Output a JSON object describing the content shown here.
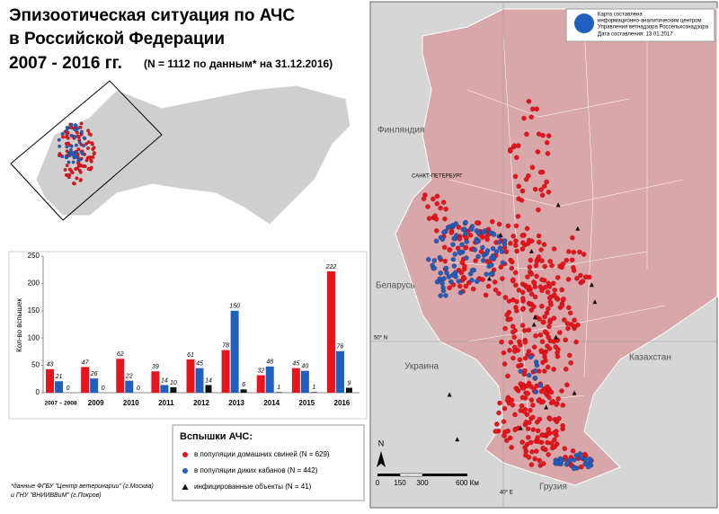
{
  "header": {
    "title_lines": [
      "Эпизоотическая ситуация по АЧС",
      "в Российской Федерации",
      "2007 - 2016 гг."
    ],
    "note": "(N = 1112 по данным* на 31.12.2016)"
  },
  "chart_data": {
    "type": "bar",
    "y_label": "Кол-во вспышек",
    "categories": [
      "2007 – 2008",
      "2009",
      "2010",
      "2011",
      "2012",
      "2013",
      "2014",
      "2015",
      "2016"
    ],
    "legend_title": "Вспышки АЧС:",
    "series": [
      {
        "name": "в популяции домашних свиней (N = 629)",
        "color": "#e8141c",
        "values": [
          43,
          47,
          62,
          39,
          61,
          78,
          32,
          45,
          222
        ]
      },
      {
        "name": "в популяции диких кабанов (N = 442)",
        "color": "#1f5fbf",
        "values": [
          21,
          26,
          22,
          14,
          45,
          150,
          48,
          40,
          76
        ]
      },
      {
        "name": "инфицированные объекты (N = 41)",
        "color": "#111111",
        "values": [
          0,
          0,
          0,
          10,
          14,
          6,
          1,
          1,
          9
        ]
      }
    ],
    "ylim": [
      0,
      250
    ],
    "yticks": [
      0,
      50,
      100,
      150,
      200,
      250
    ]
  },
  "footnote": [
    "*данные ФГБУ \"Центр ветеринарии\" (г.Москва)",
    "и ГНУ \"ВНИИВВиМ\" (г.Покров)"
  ],
  "map": {
    "info": [
      "Карта составлена",
      "информационно-аналитическим центром",
      "Управления ветнадзора Россельхознадзора",
      "Дата составления: 13.01.2017"
    ],
    "finland": "Финляндия",
    "spb": "САНКТ-ПЕТЕРБУРГ",
    "belarus": "Беларусь",
    "ukraine": "Украина",
    "kazakhstan": "Казахстан",
    "georgia": "Грузия",
    "lat": "50° N",
    "lon": "40° E",
    "north": "N",
    "scale": [
      "0",
      "150",
      "300",
      "600 Км"
    ]
  }
}
